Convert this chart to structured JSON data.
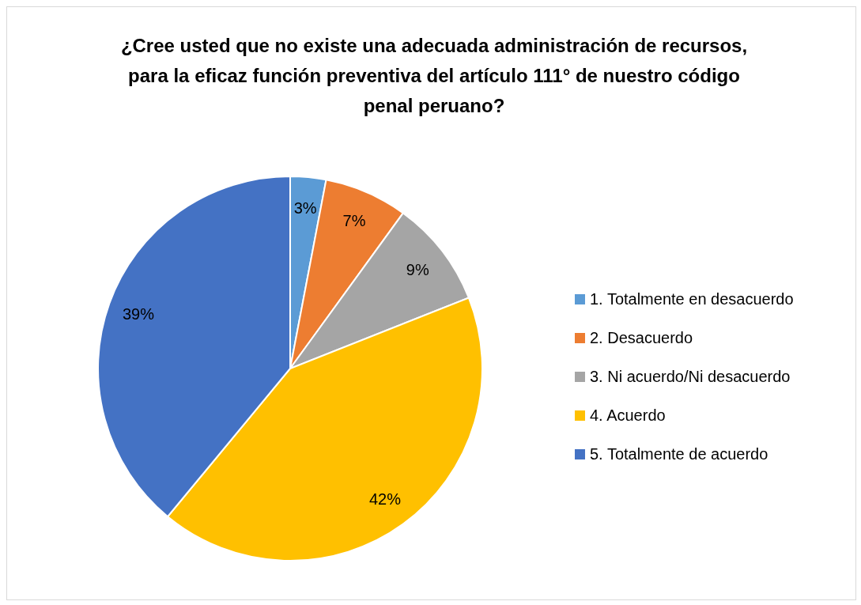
{
  "chart_data": {
    "type": "pie",
    "title": "¿Cree usted que no existe una adecuada administración de recursos, para la eficaz función preventiva del artículo 111° de nuestro código penal peruano?",
    "categories": [
      "1. Totalmente en desacuerdo",
      "2. Desacuerdo",
      "3. Ni acuerdo/Ni desacuerdo",
      "4. Acuerdo",
      "5. Totalmente de acuerdo"
    ],
    "values": [
      3,
      7,
      9,
      42,
      39
    ],
    "value_labels": [
      "3%",
      "7%",
      "9%",
      "42%",
      "39%"
    ],
    "colors": [
      "#5b9bd5",
      "#ed7d31",
      "#a5a5a5",
      "#ffc000",
      "#4472c4"
    ],
    "legend": "right"
  }
}
